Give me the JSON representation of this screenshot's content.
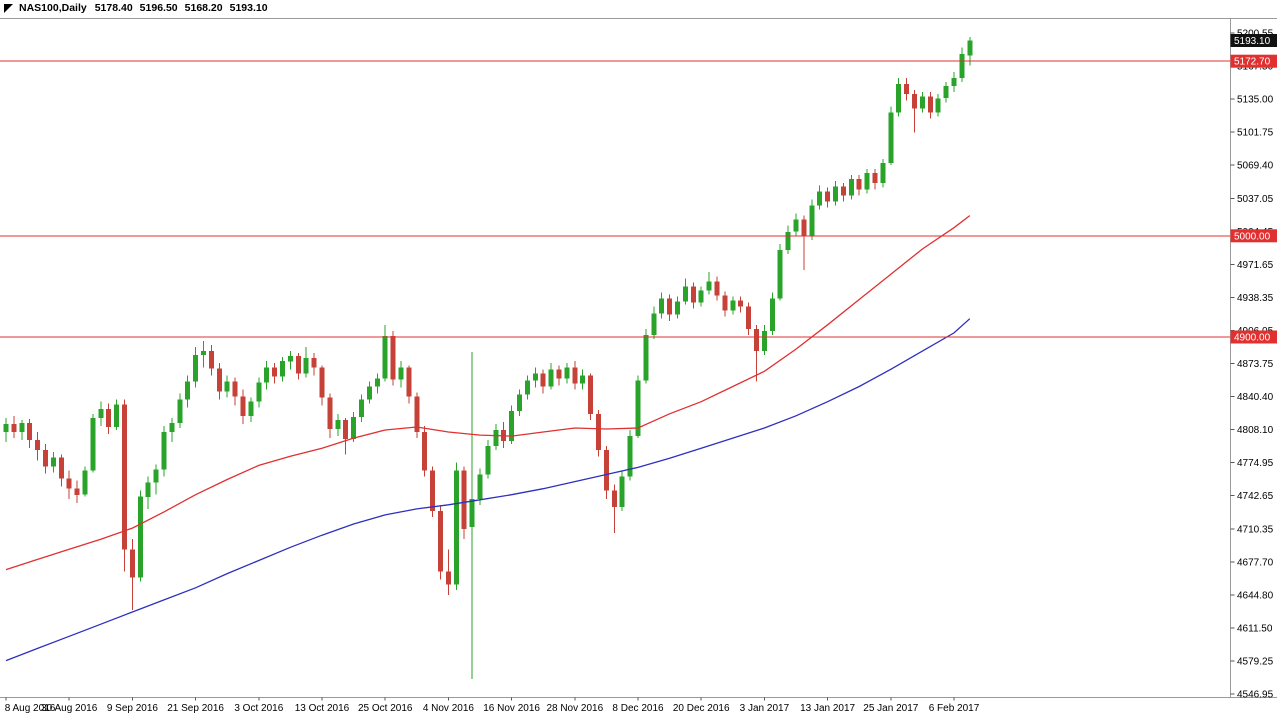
{
  "title_bar": {
    "symbol": "NAS100,Daily",
    "open": "5178.40",
    "high": "5196.50",
    "low": "5168.20",
    "close": "5193.10"
  },
  "icons": {
    "window_menu": "triangle-down-icon"
  },
  "colors": {
    "background": "#ffffff",
    "bull": "#29a329",
    "bear": "#c64137",
    "ma_fast": "#e03030",
    "ma_slow": "#2f2fbf",
    "level_line": "#e03030",
    "current_price_badge": "#111111",
    "level_badge": "#e03030",
    "border": "#9a9a9a",
    "axis_text": "#000000"
  },
  "chart_data": {
    "type": "candlestick",
    "title": "NAS100,Daily",
    "symbol": "NAS100",
    "timeframe": "Daily",
    "grid": false,
    "x_axis": {
      "label_step": 8,
      "labels": [
        "8 Aug 2016",
        "30 Aug 2016",
        "9 Sep 2016",
        "21 Sep 2016",
        "3 Oct 2016",
        "13 Oct 2016",
        "25 Oct 2016",
        "4 Nov 2016",
        "16 Nov 2016",
        "28 Nov 2016",
        "8 Dec 2016",
        "20 Dec 2016",
        "3 Jan 2017",
        "13 Jan 2017",
        "25 Jan 2017",
        "6 Feb 2017"
      ]
    },
    "y_axis": {
      "top_value": 5200.55,
      "bottom_value": 4546.95,
      "tick_labels": [
        "5200.55",
        "5167.50",
        "5135.00",
        "5101.75",
        "5069.40",
        "5037.05",
        "5004.45",
        "4971.65",
        "4938.35",
        "4906.05",
        "4873.75",
        "4840.40",
        "4808.10",
        "4774.95",
        "4742.65",
        "4710.35",
        "4677.70",
        "4644.80",
        "4611.50",
        "4579.25",
        "4546.95"
      ]
    },
    "current_price": 5193.1,
    "horizontal_lines": [
      {
        "price": 5172.7,
        "color": "#e03030"
      },
      {
        "price": 5000.0,
        "color": "#e03030"
      },
      {
        "price": 4900.0,
        "color": "#e03030"
      }
    ],
    "price_badges": [
      {
        "label": "5193.10",
        "price": 5193.1,
        "color": "#111111"
      },
      {
        "label": "5172.70",
        "price": 5172.7,
        "color": "#e03030"
      },
      {
        "label": "5000.00",
        "price": 5000.0,
        "color": "#e03030"
      },
      {
        "label": "4900.00",
        "price": 4900.0,
        "color": "#e03030"
      }
    ],
    "candles": [
      [
        4806,
        4820,
        4796,
        4814
      ],
      [
        4814,
        4822,
        4800,
        4806
      ],
      [
        4806,
        4818,
        4798,
        4815
      ],
      [
        4815,
        4819,
        4790,
        4798
      ],
      [
        4798,
        4806,
        4778,
        4788
      ],
      [
        4788,
        4794,
        4765,
        4772
      ],
      [
        4772,
        4786,
        4766,
        4781
      ],
      [
        4781,
        4784,
        4752,
        4760
      ],
      [
        4760,
        4768,
        4740,
        4750
      ],
      [
        4750,
        4758,
        4736,
        4744
      ],
      [
        4744,
        4772,
        4742,
        4768
      ],
      [
        4768,
        4824,
        4766,
        4820
      ],
      [
        4820,
        4836,
        4812,
        4829
      ],
      [
        4829,
        4834,
        4804,
        4811
      ],
      [
        4811,
        4838,
        4808,
        4833
      ],
      [
        4833,
        4838,
        4668,
        4690
      ],
      [
        4690,
        4700,
        4630,
        4662
      ],
      [
        4662,
        4748,
        4658,
        4742
      ],
      [
        4742,
        4762,
        4730,
        4756
      ],
      [
        4756,
        4774,
        4744,
        4769
      ],
      [
        4769,
        4812,
        4762,
        4806
      ],
      [
        4806,
        4820,
        4796,
        4815
      ],
      [
        4815,
        4844,
        4810,
        4838
      ],
      [
        4838,
        4862,
        4830,
        4856
      ],
      [
        4856,
        4890,
        4850,
        4882
      ],
      [
        4882,
        4896,
        4870,
        4886
      ],
      [
        4886,
        4892,
        4862,
        4869
      ],
      [
        4869,
        4874,
        4838,
        4846
      ],
      [
        4846,
        4862,
        4840,
        4856
      ],
      [
        4856,
        4860,
        4832,
        4841
      ],
      [
        4841,
        4848,
        4814,
        4822
      ],
      [
        4822,
        4840,
        4816,
        4836
      ],
      [
        4836,
        4860,
        4830,
        4855
      ],
      [
        4855,
        4876,
        4848,
        4870
      ],
      [
        4870,
        4874,
        4854,
        4861
      ],
      [
        4861,
        4880,
        4856,
        4876
      ],
      [
        4876,
        4886,
        4868,
        4881
      ],
      [
        4881,
        4884,
        4858,
        4864
      ],
      [
        4864,
        4890,
        4860,
        4879
      ],
      [
        4879,
        4884,
        4862,
        4870
      ],
      [
        4870,
        4872,
        4832,
        4840
      ],
      [
        4840,
        4844,
        4800,
        4809
      ],
      [
        4809,
        4824,
        4802,
        4818
      ],
      [
        4818,
        4820,
        4784,
        4799
      ],
      [
        4799,
        4826,
        4796,
        4821
      ],
      [
        4821,
        4843,
        4816,
        4838
      ],
      [
        4838,
        4856,
        4834,
        4851
      ],
      [
        4851,
        4864,
        4844,
        4859
      ],
      [
        4859,
        4912,
        4856,
        4901
      ],
      [
        4901,
        4906,
        4852,
        4858
      ],
      [
        4858,
        4876,
        4850,
        4870
      ],
      [
        4870,
        4872,
        4834,
        4841
      ],
      [
        4841,
        4845,
        4800,
        4806
      ],
      [
        4806,
        4812,
        4762,
        4768
      ],
      [
        4768,
        4772,
        4722,
        4728
      ],
      [
        4728,
        4734,
        4660,
        4668
      ],
      [
        4668,
        4690,
        4645,
        4655
      ],
      [
        4655,
        4776,
        4650,
        4768
      ],
      [
        4768,
        4772,
        4700,
        4710
      ],
      [
        4712,
        4885,
        4562,
        4740
      ],
      [
        4740,
        4770,
        4734,
        4764
      ],
      [
        4764,
        4798,
        4760,
        4792
      ],
      [
        4792,
        4814,
        4788,
        4808
      ],
      [
        4808,
        4816,
        4790,
        4797
      ],
      [
        4797,
        4832,
        4794,
        4827
      ],
      [
        4827,
        4848,
        4822,
        4843
      ],
      [
        4843,
        4862,
        4838,
        4857
      ],
      [
        4857,
        4870,
        4850,
        4864
      ],
      [
        4864,
        4868,
        4844,
        4851
      ],
      [
        4851,
        4874,
        4848,
        4868
      ],
      [
        4868,
        4872,
        4852,
        4859
      ],
      [
        4859,
        4874,
        4854,
        4870
      ],
      [
        4870,
        4876,
        4848,
        4854
      ],
      [
        4854,
        4868,
        4848,
        4862
      ],
      [
        4862,
        4864,
        4818,
        4824
      ],
      [
        4824,
        4828,
        4782,
        4788
      ],
      [
        4788,
        4792,
        4740,
        4748
      ],
      [
        4748,
        4754,
        4706,
        4732
      ],
      [
        4732,
        4768,
        4728,
        4762
      ],
      [
        4762,
        4808,
        4758,
        4802
      ],
      [
        4802,
        4862,
        4800,
        4857
      ],
      [
        4857,
        4908,
        4854,
        4902
      ],
      [
        4902,
        4930,
        4898,
        4923
      ],
      [
        4923,
        4944,
        4918,
        4938
      ],
      [
        4938,
        4942,
        4916,
        4922
      ],
      [
        4922,
        4940,
        4918,
        4935
      ],
      [
        4935,
        4958,
        4932,
        4950
      ],
      [
        4950,
        4954,
        4928,
        4934
      ],
      [
        4934,
        4950,
        4930,
        4946
      ],
      [
        4946,
        4964,
        4942,
        4955
      ],
      [
        4955,
        4960,
        4936,
        4941
      ],
      [
        4941,
        4945,
        4920,
        4926
      ],
      [
        4926,
        4940,
        4922,
        4936
      ],
      [
        4936,
        4940,
        4924,
        4930
      ],
      [
        4930,
        4934,
        4902,
        4908
      ],
      [
        4908,
        4912,
        4856,
        4886
      ],
      [
        4886,
        4912,
        4882,
        4906
      ],
      [
        4906,
        4944,
        4902,
        4938
      ],
      [
        4938,
        4992,
        4936,
        4986
      ],
      [
        4986,
        5010,
        4982,
        5004
      ],
      [
        5004,
        5022,
        5000,
        5016
      ],
      [
        5016,
        5020,
        4966,
        5000
      ],
      [
        5000,
        5036,
        4996,
        5030
      ],
      [
        5030,
        5050,
        5026,
        5044
      ],
      [
        5044,
        5048,
        5028,
        5034
      ],
      [
        5034,
        5054,
        5030,
        5049
      ],
      [
        5049,
        5052,
        5034,
        5040
      ],
      [
        5040,
        5060,
        5036,
        5056
      ],
      [
        5056,
        5060,
        5040,
        5046
      ],
      [
        5046,
        5066,
        5042,
        5062
      ],
      [
        5062,
        5066,
        5046,
        5052
      ],
      [
        5052,
        5076,
        5048,
        5072
      ],
      [
        5072,
        5128,
        5070,
        5122
      ],
      [
        5122,
        5156,
        5118,
        5150
      ],
      [
        5150,
        5156,
        5134,
        5140
      ],
      [
        5140,
        5144,
        5102,
        5126
      ],
      [
        5126,
        5142,
        5122,
        5138
      ],
      [
        5138,
        5142,
        5116,
        5122
      ],
      [
        5122,
        5140,
        5118,
        5136
      ],
      [
        5136,
        5152,
        5132,
        5148
      ],
      [
        5148,
        5162,
        5142,
        5156
      ],
      [
        5156,
        5186,
        5152,
        5180
      ],
      [
        5178.4,
        5196.5,
        5168.2,
        5193.1
      ]
    ],
    "overlays": [
      {
        "name": "ma-fast-red-line",
        "color": "#e03030",
        "points": [
          [
            0,
            4670
          ],
          [
            4,
            4680
          ],
          [
            8,
            4690
          ],
          [
            12,
            4700
          ],
          [
            16,
            4711
          ],
          [
            20,
            4727
          ],
          [
            24,
            4744
          ],
          [
            28,
            4759
          ],
          [
            32,
            4773
          ],
          [
            36,
            4782
          ],
          [
            40,
            4790
          ],
          [
            44,
            4800
          ],
          [
            48,
            4808
          ],
          [
            52,
            4811
          ],
          [
            56,
            4806
          ],
          [
            60,
            4803
          ],
          [
            64,
            4802
          ],
          [
            68,
            4806
          ],
          [
            72,
            4810
          ],
          [
            76,
            4809
          ],
          [
            80,
            4810
          ],
          [
            84,
            4824
          ],
          [
            88,
            4836
          ],
          [
            92,
            4851
          ],
          [
            96,
            4866
          ],
          [
            100,
            4888
          ],
          [
            104,
            4912
          ],
          [
            108,
            4937
          ],
          [
            112,
            4962
          ],
          [
            116,
            4987
          ],
          [
            120,
            5008
          ],
          [
            122,
            5020
          ]
        ]
      },
      {
        "name": "ma-slow-blue-line",
        "color": "#2f2fbf",
        "points": [
          [
            0,
            4580
          ],
          [
            4,
            4592
          ],
          [
            8,
            4604
          ],
          [
            12,
            4616
          ],
          [
            16,
            4628
          ],
          [
            20,
            4640
          ],
          [
            24,
            4652
          ],
          [
            28,
            4666
          ],
          [
            32,
            4679
          ],
          [
            36,
            4692
          ],
          [
            40,
            4704
          ],
          [
            44,
            4715
          ],
          [
            48,
            4724
          ],
          [
            52,
            4730
          ],
          [
            56,
            4734
          ],
          [
            60,
            4739
          ],
          [
            64,
            4744
          ],
          [
            68,
            4750
          ],
          [
            72,
            4757
          ],
          [
            76,
            4764
          ],
          [
            80,
            4771
          ],
          [
            84,
            4780
          ],
          [
            88,
            4790
          ],
          [
            92,
            4800
          ],
          [
            96,
            4810
          ],
          [
            100,
            4822
          ],
          [
            104,
            4836
          ],
          [
            108,
            4851
          ],
          [
            112,
            4868
          ],
          [
            116,
            4886
          ],
          [
            120,
            4904
          ],
          [
            122,
            4918
          ]
        ]
      }
    ]
  }
}
